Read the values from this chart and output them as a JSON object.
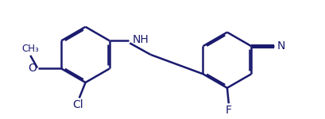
{
  "bg_color": "#ffffff",
  "bond_color": "#1a1a6e",
  "label_color": "#1a1a6e",
  "line_width": 1.8,
  "font_size": 10,
  "figsize": [
    4.1,
    1.5
  ],
  "dpi": 100,
  "xlim": [
    0,
    4.1
  ],
  "ylim": [
    0,
    1.5
  ]
}
